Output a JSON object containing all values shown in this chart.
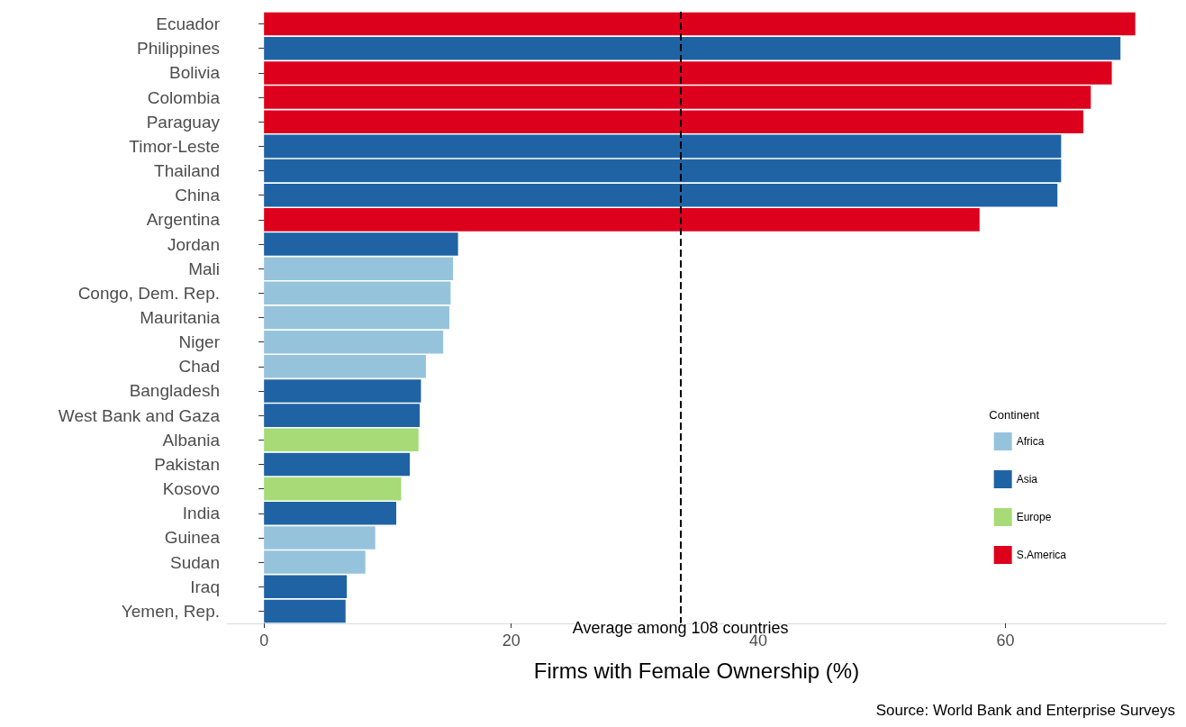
{
  "chart_data": {
    "type": "bar",
    "orientation": "horizontal",
    "xlabel": "Firms with Female Ownership (%)",
    "legend_title": "Continent",
    "legend": "right",
    "grid": false,
    "categories": [
      "Ecuador",
      "Philippines",
      "Bolivia",
      "Colombia",
      "Paraguay",
      "Timor-Leste",
      "Thailand",
      "China",
      "Argentina",
      "Jordan",
      "Mali",
      "Congo, Dem. Rep.",
      "Mauritania",
      "Niger",
      "Chad",
      "Bangladesh",
      "West Bank and Gaza",
      "Albania",
      "Pakistan",
      "Kosovo",
      "India",
      "Guinea",
      "Sudan",
      "Iraq",
      "Yemen, Rep."
    ],
    "series": [
      {
        "name": "Africa",
        "color": "#96c3dc",
        "values": [
          null,
          null,
          null,
          null,
          null,
          null,
          null,
          null,
          null,
          null,
          15.3,
          15.1,
          15.0,
          14.5,
          13.1,
          null,
          null,
          null,
          null,
          null,
          null,
          9.0,
          8.2,
          null,
          null
        ]
      },
      {
        "name": "Asia",
        "color": "#1f63a5",
        "values": [
          null,
          69.3,
          null,
          null,
          null,
          64.5,
          64.5,
          64.2,
          null,
          15.7,
          null,
          null,
          null,
          null,
          null,
          12.7,
          12.6,
          null,
          11.8,
          null,
          10.7,
          null,
          null,
          6.7,
          6.6
        ]
      },
      {
        "name": "Europe",
        "color": "#a6db78",
        "values": [
          null,
          null,
          null,
          null,
          null,
          null,
          null,
          null,
          null,
          null,
          null,
          null,
          null,
          null,
          null,
          null,
          null,
          12.5,
          null,
          11.1,
          null,
          null,
          null,
          null,
          null
        ]
      },
      {
        "name": "S.America",
        "color": "#dc001c",
        "values": [
          70.5,
          null,
          68.6,
          66.9,
          66.3,
          null,
          null,
          null,
          57.9,
          null,
          null,
          null,
          null,
          null,
          null,
          null,
          null,
          null,
          null,
          null,
          null,
          null,
          null,
          null,
          null
        ]
      }
    ],
    "xlim": [
      -3,
      73
    ],
    "xticks": [
      0,
      20,
      40,
      60
    ],
    "ref_lines": [
      {
        "axis": "x",
        "value": 33.7,
        "label": "Average among 108 countries",
        "color": "#000000",
        "line_style": "dashed"
      }
    ],
    "annotations": [
      "Source: World Bank and Enterprise Surveys"
    ]
  }
}
